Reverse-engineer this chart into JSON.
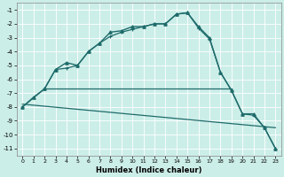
{
  "title": "",
  "xlabel": "Humidex (Indice chaleur)",
  "bg_color": "#cceee8",
  "grid_color": "#ffffff",
  "line_color": "#1e6b6b",
  "xlim": [
    -0.5,
    23.5
  ],
  "ylim": [
    -11.5,
    -0.5
  ],
  "yticks": [
    -11,
    -10,
    -9,
    -8,
    -7,
    -6,
    -5,
    -4,
    -3,
    -2,
    -1
  ],
  "xticks": [
    0,
    1,
    2,
    3,
    4,
    5,
    6,
    7,
    8,
    9,
    10,
    11,
    12,
    13,
    14,
    15,
    16,
    17,
    18,
    19,
    20,
    21,
    22,
    23
  ],
  "lines": [
    {
      "x": [
        0,
        1,
        2,
        3,
        4,
        5,
        6,
        7,
        8,
        9,
        10,
        11,
        12,
        13,
        14,
        15,
        16,
        17,
        18,
        19,
        20,
        21,
        22,
        23
      ],
      "y": [
        -8.0,
        -7.3,
        -6.7,
        -5.3,
        -4.8,
        -5.0,
        -4.0,
        -3.4,
        -2.6,
        -2.5,
        -2.2,
        -2.2,
        -2.0,
        -2.0,
        -1.3,
        -1.2,
        -2.2,
        -3.0,
        -5.5,
        -6.8,
        -8.5,
        -8.5,
        -9.5,
        -11.0
      ],
      "marker": "^",
      "markersize": 2.5,
      "linewidth": 1.0
    },
    {
      "x": [
        0,
        2,
        3,
        4,
        5,
        6,
        7,
        8,
        9,
        10,
        11,
        12,
        13,
        14,
        15,
        16,
        17,
        18,
        19,
        20,
        21,
        22,
        23
      ],
      "y": [
        -8.0,
        -6.7,
        -5.3,
        -5.2,
        -5.0,
        -4.0,
        -3.4,
        -2.9,
        -2.6,
        -2.4,
        -2.2,
        -2.0,
        -2.0,
        -1.3,
        -1.2,
        -2.3,
        -3.1,
        -5.5,
        -6.8,
        -8.5,
        -8.6,
        -9.5,
        -11.0
      ],
      "marker": "+",
      "markersize": 3.5,
      "linewidth": 0.9
    },
    {
      "x": [
        2,
        19
      ],
      "y": [
        -6.7,
        -6.7
      ],
      "marker": null,
      "markersize": 0,
      "linewidth": 0.9
    },
    {
      "x": [
        0,
        23
      ],
      "y": [
        -7.8,
        -9.5
      ],
      "marker": null,
      "markersize": 0,
      "linewidth": 0.9
    }
  ]
}
